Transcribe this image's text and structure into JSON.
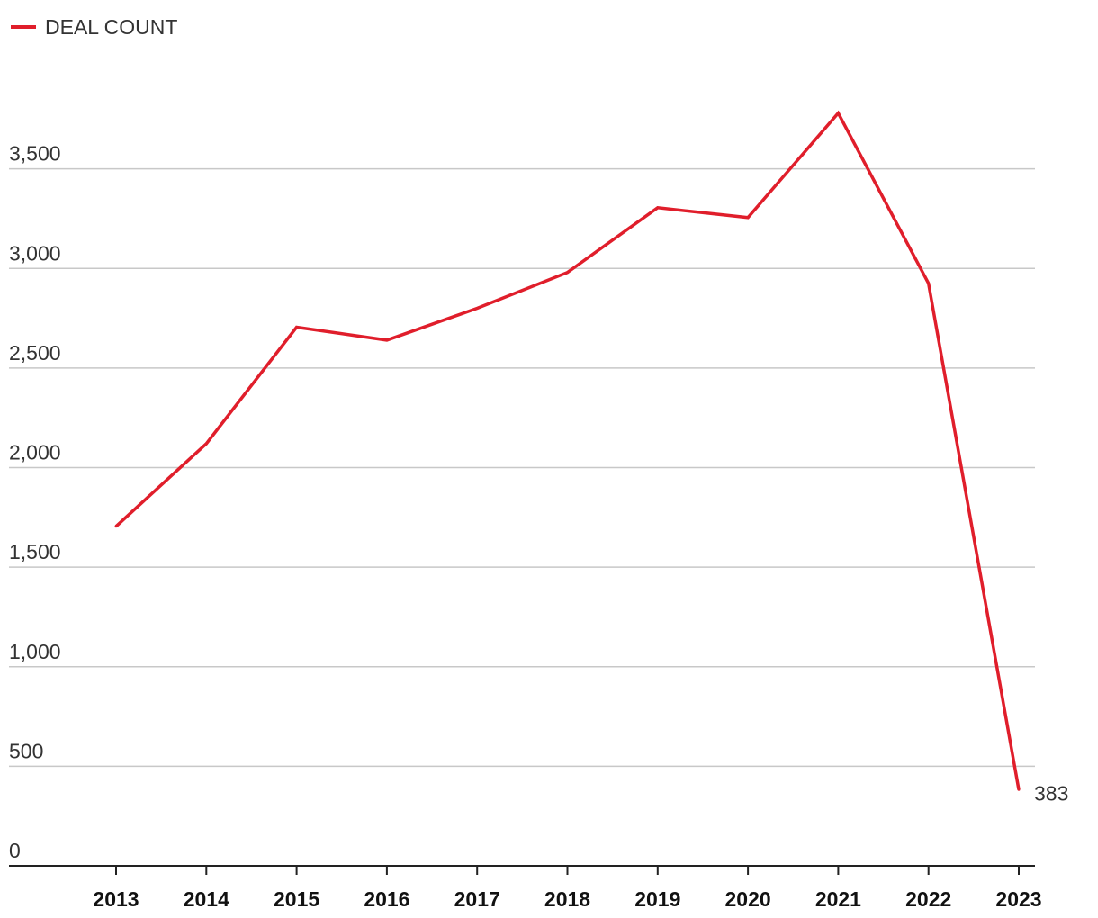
{
  "chart_data": {
    "type": "line",
    "title": "",
    "xlabel": "",
    "ylabel": "",
    "x": [
      "2013",
      "2014",
      "2015",
      "2016",
      "2017",
      "2018",
      "2019",
      "2020",
      "2021",
      "2022",
      "2023"
    ],
    "series": [
      {
        "name": "DEAL COUNT",
        "color": "#e01e2b",
        "values": [
          1705,
          2120,
          2705,
          2640,
          2800,
          2980,
          3305,
          3255,
          3780,
          2925,
          383
        ]
      }
    ],
    "ylim": [
      0,
      4000
    ],
    "yticks": [
      0,
      500,
      1000,
      1500,
      2000,
      2500,
      3000,
      3500
    ],
    "ytick_labels": [
      "0",
      "500",
      "1,000",
      "1,500",
      "2,000",
      "2,500",
      "3,000",
      "3,500"
    ],
    "grid": "horizontal",
    "legend": "top-left",
    "end_label": "383",
    "colors": {
      "line": "#e01e2b",
      "grid": "#c8c8c8",
      "axis": "#222222",
      "text": "#333333"
    }
  }
}
